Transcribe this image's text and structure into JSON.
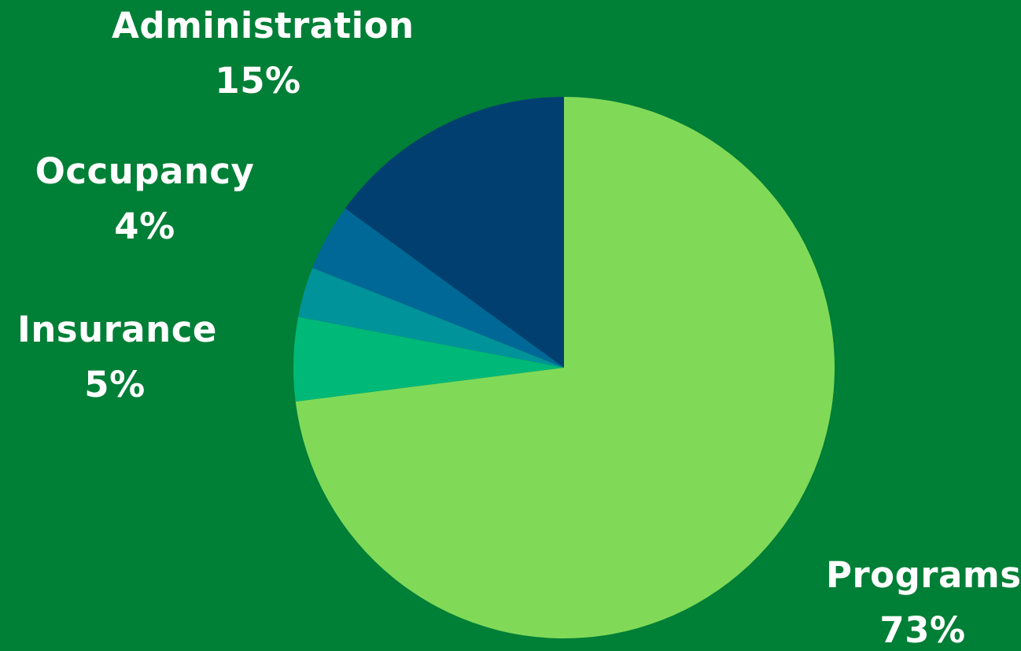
{
  "background_color": "#007f36",
  "chart_data": {
    "type": "pie",
    "title": "",
    "start_angle_deg": 0,
    "direction": "clockwise",
    "slices": [
      {
        "id": "programs",
        "label": "Programs",
        "value": 73,
        "value_label": "73%",
        "color": "#80da58"
      },
      {
        "id": "insurance",
        "label": "Insurance",
        "value": 5,
        "value_label": "5%",
        "color": "#00b877"
      },
      {
        "id": "unlabeled",
        "label": "",
        "value": 3,
        "value_label": "",
        "color": "#00939a"
      },
      {
        "id": "occupancy",
        "label": "Occupancy",
        "value": 4,
        "value_label": "4%",
        "color": "#006896"
      },
      {
        "id": "administration",
        "label": "Administration",
        "value": 15,
        "value_label": "15%",
        "color": "#003f70"
      }
    ]
  },
  "labels": {
    "administration": {
      "name": "Administration",
      "pct": "15%"
    },
    "occupancy": {
      "name": "Occupancy",
      "pct": "4%"
    },
    "insurance": {
      "name": "Insurance",
      "pct": "5%"
    },
    "programs": {
      "name": "Programs",
      "pct": "73%"
    }
  }
}
